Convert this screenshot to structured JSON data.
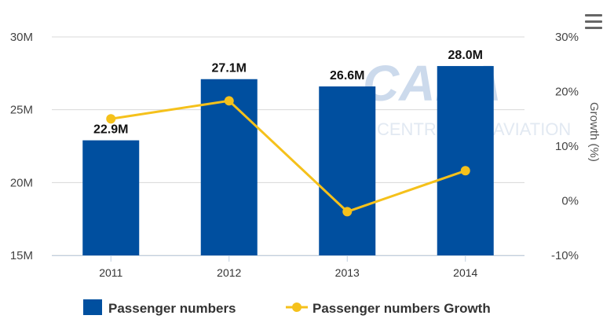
{
  "chart_data": {
    "type": "bar",
    "categories": [
      "2011",
      "2012",
      "2013",
      "2014"
    ],
    "series": [
      {
        "name": "Passenger numbers",
        "type": "bar",
        "axis": "left",
        "values": [
          22.9,
          27.1,
          26.6,
          28.0
        ],
        "labels": [
          "22.9M",
          "27.1M",
          "26.6M",
          "28.0M"
        ],
        "color": "#004f9f"
      },
      {
        "name": "Passenger numbers Growth",
        "type": "line",
        "axis": "right",
        "values": [
          15.0,
          18.3,
          -2.0,
          5.5
        ],
        "color": "#f5c11b"
      }
    ],
    "left_axis": {
      "ylim": [
        15,
        30
      ],
      "ticks": [
        15,
        20,
        25,
        30
      ],
      "tick_labels": [
        "15M",
        "20M",
        "25M",
        "30M"
      ],
      "label": ""
    },
    "right_axis": {
      "ylim": [
        -10,
        30
      ],
      "ticks": [
        -10,
        0,
        10,
        20,
        30
      ],
      "tick_labels": [
        "-10%",
        "0%",
        "10%",
        "20%",
        "30%"
      ],
      "label": "Growth (%)"
    },
    "grid": true,
    "legend_position": "bottom"
  },
  "watermark": {
    "main": "CAPA",
    "sub": "CENTRE FOR AVIATION"
  },
  "menu": {
    "icon": "hamburger-menu-icon"
  }
}
